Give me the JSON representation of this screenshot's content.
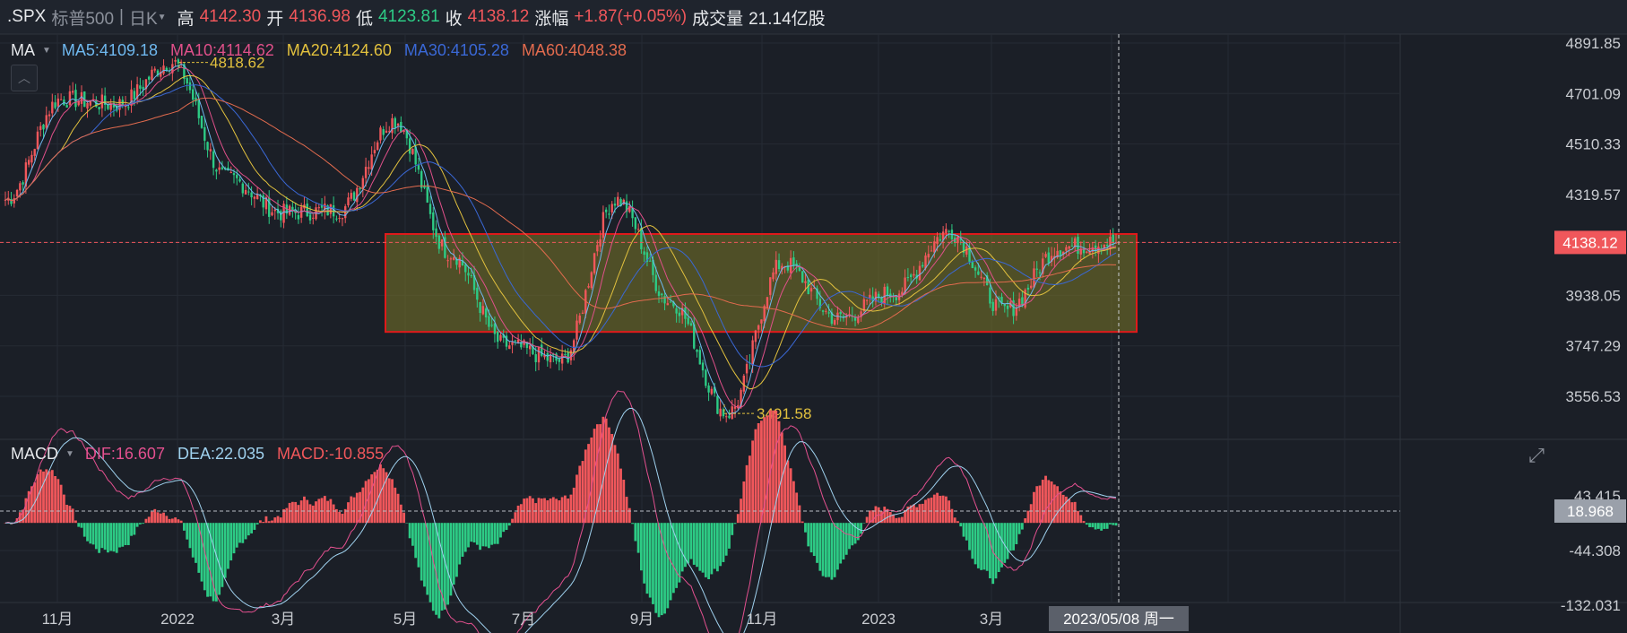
{
  "header": {
    "symbol": ".SPX",
    "name": "标普500",
    "period": "日K",
    "high_label": "高",
    "high": "4142.30",
    "open_label": "开",
    "open": "4136.98",
    "low_label": "低",
    "low": "4123.81",
    "close_label": "收",
    "close": "4138.12",
    "change_label": "涨幅",
    "change": "+1.87(+0.05%)",
    "volume_label": "成交量",
    "volume": "21.14亿股"
  },
  "ma_legend": {
    "label": "MA",
    "ma5": "MA5:4109.18",
    "ma10": "MA10:4114.62",
    "ma20": "MA20:4124.60",
    "ma30": "MA30:4105.28",
    "ma60": "MA60:4048.38"
  },
  "macd_legend": {
    "label": "MACD",
    "dif": "DIF:16.607",
    "dea": "DEA:22.035",
    "macd": "MACD:-10.855"
  },
  "price_axis": [
    "4891.85",
    "4701.09",
    "4510.33",
    "4319.57",
    "4138.12",
    "3938.05",
    "3747.29",
    "3556.53"
  ],
  "macd_axis": [
    "43.415",
    "18.968",
    "-44.308",
    "-132.031"
  ],
  "current_price_tag": "4138.12",
  "current_macd_tag": "18.968",
  "x_axis_labels": [
    "11月",
    "2022",
    "3月",
    "5月",
    "7月",
    "9月",
    "11月",
    "2023",
    "3月"
  ],
  "crosshair_date": "2023/05/08 周一",
  "annotations": {
    "max": "4818.62",
    "min": "3491.58"
  },
  "colors": {
    "bg": "#1b1f27",
    "up": "#f0575b",
    "down": "#2dcb85",
    "ma5": "#6fb8ef",
    "ma10": "#e0508a",
    "ma20": "#e2c13e",
    "ma30": "#3a68d6",
    "ma60": "#e26b4e",
    "dif": "#e3508f",
    "dea": "#9fd1ee",
    "box": "#e01a1a",
    "box_fill": "#7a7728"
  },
  "chart_data": {
    "type": "candlestick",
    "price_key_points": {
      "dates": [
        "2021-10",
        "2021-11",
        "2021-12",
        "2022-01",
        "2022-02",
        "2022-03",
        "2022-03",
        "2022-04",
        "2022-05",
        "2022-06",
        "2022-06",
        "2022-08",
        "2022-09",
        "2022-10",
        "2022-11",
        "2022-12",
        "2023-01",
        "2023-02",
        "2023-03",
        "2023-04",
        "2023-05"
      ],
      "close": [
        4300,
        4680,
        4660,
        4818.62,
        4380,
        4250,
        4260,
        4600,
        4100,
        3750,
        3690,
        4300,
        3910,
        3491.58,
        4060,
        3850,
        3950,
        4180,
        3880,
        4120,
        4138.12
      ]
    },
    "highlight_box": {
      "y_range": [
        3800,
        4170
      ]
    },
    "macd": {
      "dif_last": 16.607,
      "dea_last": 22.035,
      "macd_last": -10.855,
      "ylim": [
        -132.031,
        85
      ]
    }
  }
}
